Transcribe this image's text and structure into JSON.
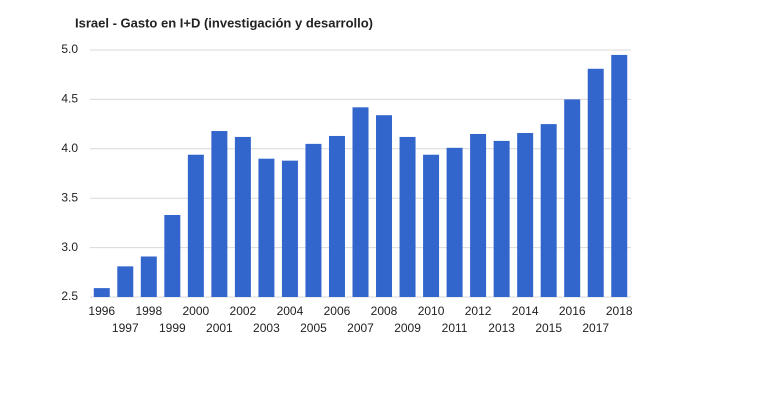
{
  "chart_data": {
    "type": "bar",
    "title": "Israel - Gasto en I+D (investigación y desarrollo)",
    "categories": [
      "1996",
      "1997",
      "1998",
      "1999",
      "2000",
      "2001",
      "2002",
      "2003",
      "2004",
      "2005",
      "2006",
      "2007",
      "2008",
      "2009",
      "2010",
      "2011",
      "2012",
      "2013",
      "2014",
      "2015",
      "2016",
      "2017",
      "2018"
    ],
    "values": [
      2.59,
      2.81,
      2.91,
      3.33,
      3.94,
      4.18,
      4.12,
      3.9,
      3.88,
      4.05,
      4.13,
      4.42,
      4.34,
      4.12,
      3.94,
      4.01,
      4.15,
      4.08,
      4.16,
      4.25,
      4.5,
      4.81,
      4.95
    ],
    "color": "#3366cc",
    "ylim": [
      2.5,
      5.0
    ],
    "yticks": [
      2.5,
      {
        "value": 3,
        "label": "3.0"
      },
      3.5,
      {
        "value": 4,
        "label": "4.0"
      },
      4.5,
      {
        "value": 5,
        "label": "5.0"
      }
    ],
    "grid": true
  }
}
